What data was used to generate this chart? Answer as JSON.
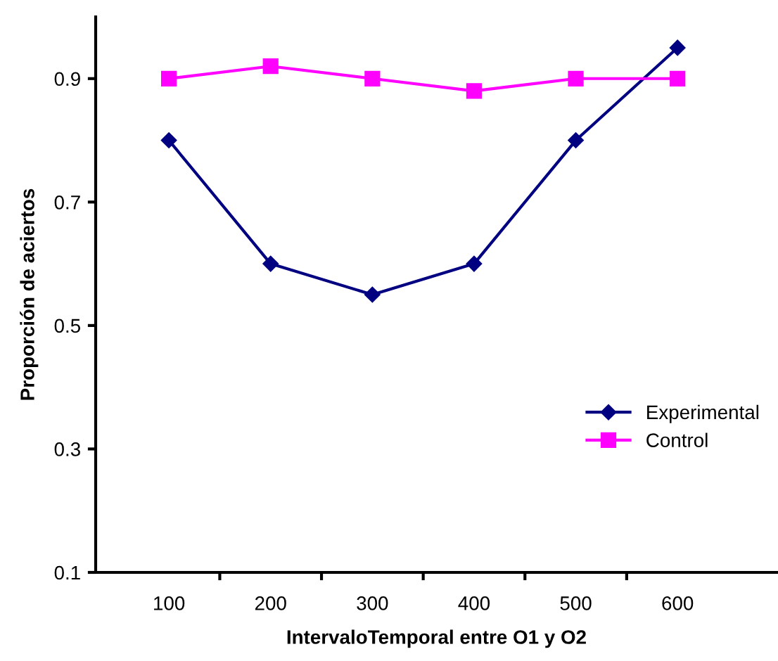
{
  "chart_data": {
    "type": "line",
    "xlabel": "IntervaloTemporal entre O1 y O2",
    "ylabel": "Proporción de aciertos",
    "categories": [
      "100",
      "200",
      "300",
      "400",
      "500",
      "600"
    ],
    "series": [
      {
        "name": "Experimental",
        "color": "#000080",
        "marker": "diamond",
        "values": [
          0.8,
          0.6,
          0.55,
          0.6,
          0.8,
          0.95
        ]
      },
      {
        "name": "Control",
        "color": "#ff00ff",
        "marker": "square",
        "values": [
          0.9,
          0.92,
          0.9,
          0.88,
          0.9,
          0.9
        ]
      }
    ],
    "ylim": [
      0.1,
      1.0
    ],
    "yticks": [
      0.1,
      0.3,
      0.5,
      0.7,
      0.9
    ],
    "grid": false,
    "legend": "right",
    "line_style": "solid"
  }
}
